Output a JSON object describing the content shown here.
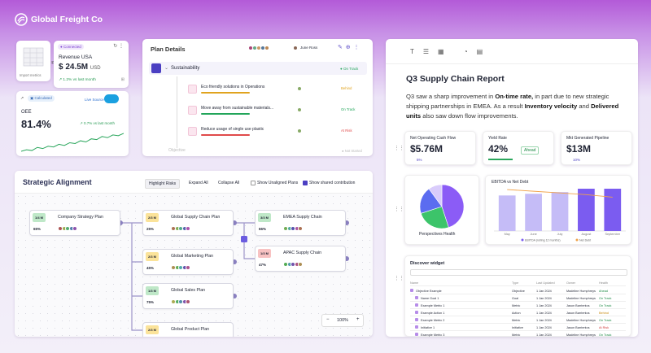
{
  "header": {
    "title": "Global Freight Co"
  },
  "import_card": {
    "label": "Import metrics"
  },
  "revenue_card": {
    "status": "Connected",
    "title": "Revenue USA",
    "value": "$ 24.5M",
    "unit": "USD",
    "change": "1.2% vs last month"
  },
  "oee_card": {
    "status": "Calculated",
    "source": "Live Source",
    "title": "OEE",
    "value": "81.4%",
    "change": "0.7% vs last month",
    "sparkline": [
      20,
      24,
      22,
      30,
      27,
      33,
      31,
      38,
      35,
      42,
      40,
      47,
      44,
      52,
      50,
      58,
      55,
      62,
      60,
      66
    ]
  },
  "plan_details": {
    "title": "Plan Details",
    "owner": "June Ross",
    "group": {
      "name": "Sustainability",
      "status": "On Track"
    },
    "items": [
      {
        "name": "Eco friendly solutions in Operations",
        "status": "Behind",
        "color": "#e0a31e"
      },
      {
        "name": "Move away from sustainable materials...",
        "status": "On Track",
        "color": "#22a55a"
      },
      {
        "name": "Reduce usage of single use plastic",
        "status": "At Risk",
        "color": "#e04a4a"
      }
    ],
    "footer": {
      "name": "Objective",
      "status": "Not Started"
    }
  },
  "strategic_alignment": {
    "title": "Strategic Alignment",
    "controls": [
      "Highlight Risks",
      "Expand All",
      "Collapse All"
    ],
    "toggles": [
      {
        "label": "Show Unaligned Plans",
        "checked": false
      },
      {
        "label": "Show shared contribution",
        "checked": true
      }
    ],
    "zoom": "100%",
    "nodes": [
      {
        "label": "Company Strategy Plan",
        "badge": "1/4 M",
        "progress": "65%",
        "color": "#bfe8c8"
      },
      {
        "label": "Global Supply Chain Plan",
        "badge": "2/3 M",
        "progress": "25%",
        "color": "#fbe39a"
      },
      {
        "label": "Global Marketing Plan",
        "badge": "2/3 M",
        "progress": "45%",
        "color": "#fbe39a"
      },
      {
        "label": "Global Sales Plan",
        "badge": "1/3 M",
        "progress": "75%",
        "color": "#bfe8c8"
      },
      {
        "label": "Global Product Plan",
        "badge": "2/3 M",
        "progress": "50%",
        "color": "#fbe39a"
      },
      {
        "label": "EMEA Supply Chain",
        "badge": "3/3 M",
        "progress": "66%",
        "color": "#bfe8c8"
      },
      {
        "label": "APAC Supply Chain",
        "badge": "1/3 M",
        "progress": "47%",
        "color": "#f8c2c2"
      }
    ]
  },
  "report": {
    "title": "Q3 Supply Chain Report",
    "paragraph": [
      {
        "text": "Q3 saw a sharp improvement in ",
        "bold": false
      },
      {
        "text": "On-time rate,",
        "bold": true
      },
      {
        "text": " in part due to new strategic shipping partnerships in EMEA. As a result ",
        "bold": false
      },
      {
        "text": "Inventory velocity",
        "bold": true
      },
      {
        "text": " and ",
        "bold": false
      },
      {
        "text": "Delivered units",
        "bold": true
      },
      {
        "text": " also saw down flow improvements.",
        "bold": false
      }
    ],
    "kpis": [
      {
        "title": "Net Operating Cash Flow",
        "value": "$5.76M",
        "note": "5%"
      },
      {
        "title": "Yield Rate",
        "value": "42%",
        "note": "Ahead"
      },
      {
        "title": "Mkt Generated Pipeline",
        "value": "$13M",
        "note": "10%"
      }
    ],
    "pie": {
      "title": "Perspectives Health",
      "values": [
        45,
        25,
        20,
        10
      ],
      "colors": [
        "#8b5cf6",
        "#3cc46a",
        "#5b6cf0",
        "#d9ccfb"
      ]
    },
    "bar": {
      "title": "EBITDA vs Net Debt",
      "categories": [
        "May",
        "June",
        "July",
        "August",
        "September"
      ],
      "series": [
        {
          "name": "EBITDA (rolling 12 months)",
          "values": [
            42,
            44,
            46,
            50,
            50
          ],
          "colors": [
            "#c5bcf7",
            "#c5bcf7",
            "#c5bcf7",
            "#7b5cf0",
            "#7b5cf0"
          ]
        },
        {
          "name": "Net Debt",
          "values": [
            49,
            47,
            45,
            43,
            40
          ],
          "color": "#f0a24a"
        }
      ]
    },
    "table": {
      "title": "Discover widget",
      "columns": [
        "Name",
        "Type",
        "Last Updated",
        "Owner",
        "Health"
      ],
      "rows": [
        [
          "Objective Example",
          "Objective",
          "1 Jan 2024",
          "Madeline Humphreys",
          "Ahead"
        ],
        [
          "Name Goal 1",
          "Goal",
          "1 Jan 2024",
          "Madeline Humphreys",
          "On Track"
        ],
        [
          "Example Metric 1",
          "Metric",
          "1 Jan 2024",
          "Jason Barrientos",
          "On Track"
        ],
        [
          "Example Action 1",
          "Action",
          "1 Jan 2024",
          "Jason Barrientos",
          "Behind"
        ],
        [
          "Example Metric 2",
          "Metric",
          "1 Jan 2024",
          "Madeline Humphreys",
          "On Track"
        ],
        [
          "Initiative 1",
          "Initiative",
          "1 Jan 2024",
          "Jason Barrientos",
          "At Risk"
        ],
        [
          "Example Metric 3",
          "Metric",
          "1 Jan 2024",
          "Madeline Humphreys",
          "On Track"
        ]
      ]
    }
  }
}
